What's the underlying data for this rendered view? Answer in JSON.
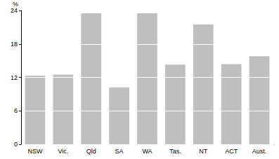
{
  "chart_data": {
    "type": "bar",
    "ylabel": "%",
    "categories": [
      "NSW",
      "Vic.",
      "Qld",
      "SA",
      "WA",
      "Tas.",
      "NT",
      "ACT",
      "Aust."
    ],
    "values": [
      12.3,
      12.5,
      23.5,
      10.2,
      23.5,
      14.3,
      21.5,
      14.4,
      15.8
    ],
    "color": "#bfbfbf",
    "ylim": [
      0,
      24
    ],
    "yticks": [
      0,
      6,
      12,
      18,
      24
    ],
    "grid": true
  }
}
